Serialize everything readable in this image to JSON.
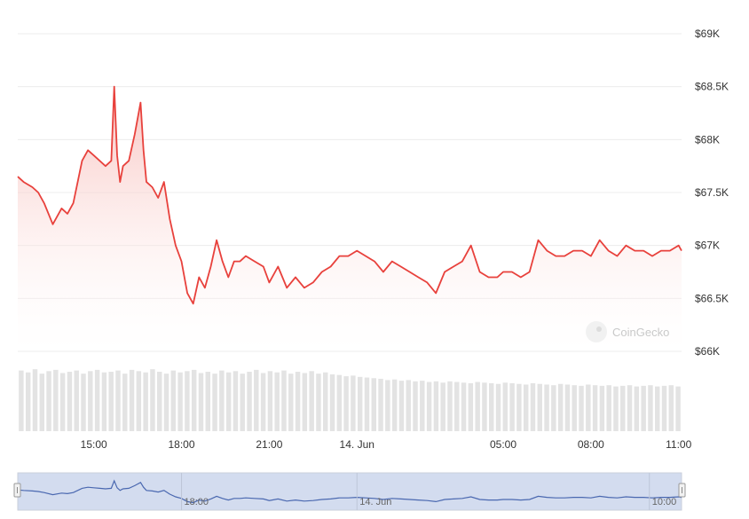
{
  "chart_data": {
    "type": "line",
    "xlabel": "",
    "ylabel": "",
    "y_unit": "USD",
    "ylim": [
      66000,
      69000
    ],
    "y_ticks": [
      {
        "value": 69000,
        "label": "$69K"
      },
      {
        "value": 68500,
        "label": "$68.5K"
      },
      {
        "value": 68000,
        "label": "$68K"
      },
      {
        "value": 67500,
        "label": "$67.5K"
      },
      {
        "value": 67000,
        "label": "$67K"
      },
      {
        "value": 66500,
        "label": "$66.5K"
      },
      {
        "value": 66000,
        "label": "$66K"
      }
    ],
    "x_range_hours": [
      12.4,
      35.1
    ],
    "x_ticks": [
      {
        "hour": 15,
        "label": "15:00"
      },
      {
        "hour": 18,
        "label": "18:00"
      },
      {
        "hour": 21,
        "label": "21:00"
      },
      {
        "hour": 24,
        "label": "14. Jun"
      },
      {
        "hour": 29,
        "label": "05:00"
      },
      {
        "hour": 32,
        "label": "08:00"
      },
      {
        "hour": 35,
        "label": "11:00"
      }
    ],
    "grid": true,
    "legend": "none",
    "series": [
      {
        "x": [
          12.4,
          12.6,
          12.9,
          13.1,
          13.3,
          13.6,
          13.9,
          14.1,
          14.3,
          14.6,
          14.8,
          15.0,
          15.2,
          15.4,
          15.6,
          15.7,
          15.8,
          15.9,
          16.0,
          16.2,
          16.4,
          16.6,
          16.7,
          16.8,
          17.0,
          17.2,
          17.4,
          17.6,
          17.8,
          18.0,
          18.2,
          18.4,
          18.6,
          18.8,
          19.0,
          19.2,
          19.4,
          19.6,
          19.8,
          20.0,
          20.2,
          20.5,
          20.8,
          21.0,
          21.3,
          21.6,
          21.9,
          22.2,
          22.5,
          22.8,
          23.1,
          23.4,
          23.7,
          24.0,
          24.3,
          24.6,
          24.9,
          25.2,
          25.5,
          25.8,
          26.1,
          26.4,
          26.7,
          27.0,
          27.3,
          27.6,
          27.9,
          28.2,
          28.5,
          28.8,
          29.0,
          29.3,
          29.6,
          29.9,
          30.2,
          30.5,
          30.8,
          31.1,
          31.4,
          31.7,
          32.0,
          32.3,
          32.6,
          32.9,
          33.2,
          33.5,
          33.8,
          34.1,
          34.4,
          34.7,
          35.0,
          35.1
        ],
        "values": [
          67650,
          67600,
          67550,
          67500,
          67400,
          67200,
          67350,
          67300,
          67400,
          67800,
          67900,
          67850,
          67800,
          67750,
          67800,
          68500,
          67850,
          67600,
          67750,
          67800,
          68050,
          68350,
          67900,
          67600,
          67550,
          67450,
          67600,
          67250,
          67000,
          66850,
          66550,
          66450,
          66700,
          66600,
          66800,
          67050,
          66850,
          66700,
          66850,
          66850,
          66900,
          66850,
          66800,
          66650,
          66800,
          66600,
          66700,
          66600,
          66650,
          66750,
          66800,
          66900,
          66900,
          66950,
          66900,
          66850,
          66750,
          66850,
          66800,
          66750,
          66700,
          66650,
          66550,
          66750,
          66800,
          66850,
          67000,
          66750,
          66700,
          66700,
          66750,
          66750,
          66700,
          66750,
          67050,
          66950,
          66900,
          66900,
          66950,
          66950,
          66900,
          67050,
          66950,
          66900,
          67000,
          66950,
          66950,
          66900,
          66950,
          66950,
          67000,
          66950
        ]
      }
    ],
    "volume": {
      "relative_heights": [
        0.95,
        0.92,
        0.97,
        0.9,
        0.94,
        0.96,
        0.91,
        0.93,
        0.95,
        0.9,
        0.94,
        0.96,
        0.92,
        0.93,
        0.95,
        0.9,
        0.96,
        0.94,
        0.92,
        0.97,
        0.93,
        0.9,
        0.95,
        0.92,
        0.94,
        0.96,
        0.91,
        0.93,
        0.9,
        0.95,
        0.92,
        0.94,
        0.9,
        0.93,
        0.96,
        0.91,
        0.94,
        0.92,
        0.95,
        0.9,
        0.93,
        0.91,
        0.94,
        0.9,
        0.92,
        0.89,
        0.88,
        0.86,
        0.87,
        0.85,
        0.84,
        0.83,
        0.82,
        0.8,
        0.81,
        0.79,
        0.8,
        0.78,
        0.79,
        0.77,
        0.78,
        0.76,
        0.78,
        0.77,
        0.76,
        0.75,
        0.77,
        0.76,
        0.75,
        0.74,
        0.76,
        0.75,
        0.74,
        0.73,
        0.75,
        0.74,
        0.73,
        0.72,
        0.74,
        0.73,
        0.72,
        0.71,
        0.73,
        0.72,
        0.71,
        0.72,
        0.7,
        0.71,
        0.72,
        0.7,
        0.71,
        0.72,
        0.7,
        0.71,
        0.72,
        0.7
      ]
    }
  },
  "navigator": {
    "ticks": [
      {
        "hour": 18,
        "label": "18:00"
      },
      {
        "hour": 24,
        "label": "14. Jun"
      },
      {
        "hour": 34,
        "label": "10:00"
      }
    ]
  },
  "watermark": {
    "text": "CoinGecko"
  },
  "colors": {
    "line": "#e8413c",
    "area_top": "#f8c9c6",
    "grid": "#ececec",
    "volume": "#e3e3e3",
    "nav_fill": "#d3dcef",
    "nav_line": "#4a68b0"
  }
}
